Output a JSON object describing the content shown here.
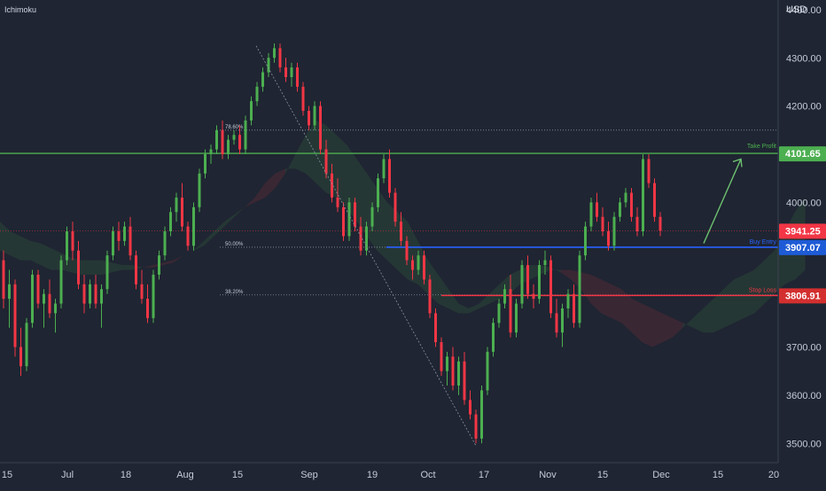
{
  "header": {
    "indicator": "Ichimoku",
    "currency": "USD"
  },
  "chart_data": {
    "type": "candlestick",
    "y_axis": {
      "ticks": [
        4400,
        4300,
        4200,
        4100,
        4000,
        3900,
        3800,
        3700,
        3600,
        3500
      ],
      "tick_labels": [
        "4400.00",
        "4300.00",
        "4200.00",
        "4100.00",
        "4000.00",
        "3900.00",
        "3800.00",
        "3700.00",
        "3600.00",
        "3500.00"
      ],
      "ylim": [
        3460,
        4420
      ]
    },
    "x_axis": {
      "tick_labels": [
        "15",
        "Jul",
        "18",
        "Aug",
        "15",
        "Sep",
        "19",
        "Oct",
        "17",
        "Nov",
        "15",
        "Dec",
        "15",
        "20"
      ]
    },
    "levels": [
      {
        "label": "Take Profit",
        "value": 4101.65,
        "text": "4101.65",
        "color": "#4caf50"
      },
      {
        "label": "Stop Loss",
        "value": 3806.91,
        "text": "3806.91",
        "color": "#f23645"
      },
      {
        "label": "Buy Entry",
        "value": 3907.07,
        "text": "3907.07",
        "color": "#2962ff"
      }
    ],
    "last_price": {
      "value": 3941.25,
      "text": "3941.25",
      "color": "#f23645"
    },
    "fibonacci": [
      {
        "label": "78.60%",
        "value": 4150
      },
      {
        "label": "50.00%",
        "value": 3907
      },
      {
        "label": "38.20%",
        "value": 3808
      }
    ],
    "trend_swing": {
      "high": 4325,
      "low": 3495
    },
    "ohlc": [
      [
        3880,
        3900,
        3780,
        3800
      ],
      [
        3800,
        3860,
        3740,
        3830
      ],
      [
        3830,
        3840,
        3680,
        3700
      ],
      [
        3700,
        3740,
        3640,
        3660
      ],
      [
        3660,
        3760,
        3650,
        3750
      ],
      [
        3750,
        3860,
        3740,
        3850
      ],
      [
        3850,
        3860,
        3780,
        3790
      ],
      [
        3790,
        3820,
        3740,
        3810
      ],
      [
        3810,
        3840,
        3760,
        3770
      ],
      [
        3770,
        3800,
        3730,
        3790
      ],
      [
        3790,
        3890,
        3780,
        3880
      ],
      [
        3880,
        3950,
        3870,
        3940
      ],
      [
        3940,
        3960,
        3880,
        3900
      ],
      [
        3900,
        3920,
        3820,
        3830
      ],
      [
        3830,
        3850,
        3770,
        3790
      ],
      [
        3790,
        3840,
        3780,
        3830
      ],
      [
        3830,
        3850,
        3780,
        3790
      ],
      [
        3790,
        3830,
        3740,
        3820
      ],
      [
        3820,
        3900,
        3810,
        3890
      ],
      [
        3890,
        3950,
        3880,
        3940
      ],
      [
        3940,
        3960,
        3900,
        3920
      ],
      [
        3920,
        3960,
        3910,
        3950
      ],
      [
        3950,
        3970,
        3880,
        3890
      ],
      [
        3890,
        3900,
        3820,
        3830
      ],
      [
        3830,
        3860,
        3790,
        3800
      ],
      [
        3800,
        3830,
        3750,
        3760
      ],
      [
        3760,
        3860,
        3750,
        3850
      ],
      [
        3850,
        3900,
        3840,
        3890
      ],
      [
        3890,
        3950,
        3880,
        3940
      ],
      [
        3940,
        3990,
        3930,
        3980
      ],
      [
        3980,
        4020,
        3960,
        4010
      ],
      [
        4010,
        4040,
        3940,
        3950
      ],
      [
        3950,
        3960,
        3900,
        3910
      ],
      [
        3910,
        4000,
        3900,
        3990
      ],
      [
        3990,
        4070,
        3980,
        4060
      ],
      [
        4060,
        4110,
        4050,
        4100
      ],
      [
        4100,
        4120,
        4080,
        4110
      ],
      [
        4110,
        4160,
        4100,
        4150
      ],
      [
        4150,
        4170,
        4090,
        4100
      ],
      [
        4100,
        4140,
        4090,
        4130
      ],
      [
        4130,
        4150,
        4120,
        4140
      ],
      [
        4140,
        4160,
        4100,
        4110
      ],
      [
        4110,
        4180,
        4100,
        4170
      ],
      [
        4170,
        4220,
        4160,
        4210
      ],
      [
        4210,
        4250,
        4200,
        4240
      ],
      [
        4240,
        4280,
        4230,
        4270
      ],
      [
        4270,
        4310,
        4260,
        4300
      ],
      [
        4300,
        4330,
        4290,
        4320
      ],
      [
        4320,
        4330,
        4270,
        4280
      ],
      [
        4280,
        4300,
        4250,
        4260
      ],
      [
        4260,
        4290,
        4240,
        4280
      ],
      [
        4280,
        4290,
        4230,
        4240
      ],
      [
        4240,
        4250,
        4180,
        4190
      ],
      [
        4190,
        4200,
        4150,
        4160
      ],
      [
        4160,
        4210,
        4150,
        4200
      ],
      [
        4200,
        4210,
        4100,
        4110
      ],
      [
        4110,
        4130,
        4050,
        4060
      ],
      [
        4060,
        4080,
        4000,
        4010
      ],
      [
        4010,
        4050,
        3980,
        3990
      ],
      [
        3990,
        4000,
        3920,
        3930
      ],
      [
        3930,
        4010,
        3920,
        4000
      ],
      [
        4000,
        4010,
        3940,
        3950
      ],
      [
        3950,
        3970,
        3890,
        3900
      ],
      [
        3900,
        3960,
        3890,
        3950
      ],
      [
        3950,
        4000,
        3940,
        3990
      ],
      [
        3990,
        4060,
        3980,
        4050
      ],
      [
        4050,
        4100,
        4040,
        4090
      ],
      [
        4090,
        4110,
        4010,
        4020
      ],
      [
        4020,
        4030,
        3950,
        3960
      ],
      [
        3960,
        3980,
        3910,
        3920
      ],
      [
        3920,
        3930,
        3870,
        3880
      ],
      [
        3880,
        3890,
        3840,
        3860
      ],
      [
        3860,
        3900,
        3850,
        3890
      ],
      [
        3890,
        3900,
        3830,
        3840
      ],
      [
        3840,
        3850,
        3760,
        3770
      ],
      [
        3770,
        3780,
        3700,
        3710
      ],
      [
        3710,
        3720,
        3640,
        3650
      ],
      [
        3650,
        3690,
        3620,
        3680
      ],
      [
        3680,
        3700,
        3610,
        3620
      ],
      [
        3620,
        3680,
        3600,
        3670
      ],
      [
        3670,
        3690,
        3580,
        3590
      ],
      [
        3590,
        3610,
        3550,
        3560
      ],
      [
        3560,
        3570,
        3500,
        3510
      ],
      [
        3510,
        3620,
        3500,
        3610
      ],
      [
        3610,
        3700,
        3600,
        3690
      ],
      [
        3690,
        3760,
        3680,
        3750
      ],
      [
        3750,
        3800,
        3740,
        3790
      ],
      [
        3790,
        3830,
        3780,
        3820
      ],
      [
        3820,
        3850,
        3720,
        3730
      ],
      [
        3730,
        3800,
        3720,
        3790
      ],
      [
        3790,
        3880,
        3780,
        3870
      ],
      [
        3870,
        3890,
        3800,
        3810
      ],
      [
        3810,
        3830,
        3780,
        3800
      ],
      [
        3800,
        3880,
        3790,
        3870
      ],
      [
        3870,
        3900,
        3850,
        3880
      ],
      [
        3880,
        3890,
        3760,
        3770
      ],
      [
        3770,
        3800,
        3720,
        3730
      ],
      [
        3730,
        3790,
        3700,
        3780
      ],
      [
        3780,
        3820,
        3760,
        3810
      ],
      [
        3810,
        3830,
        3740,
        3750
      ],
      [
        3750,
        3900,
        3740,
        3890
      ],
      [
        3890,
        3960,
        3880,
        3950
      ],
      [
        3950,
        4010,
        3940,
        4000
      ],
      [
        4000,
        4020,
        3960,
        3970
      ],
      [
        3970,
        3990,
        3930,
        3940
      ],
      [
        3940,
        3960,
        3900,
        3910
      ],
      [
        3910,
        3980,
        3900,
        3970
      ],
      [
        3970,
        4010,
        3960,
        4000
      ],
      [
        4000,
        4030,
        3990,
        4020
      ],
      [
        4020,
        4030,
        3960,
        3970
      ],
      [
        3970,
        3990,
        3930,
        3940
      ],
      [
        3940,
        4100,
        3930,
        4090
      ],
      [
        4090,
        4100,
        4030,
        4040
      ],
      [
        4040,
        4050,
        3960,
        3970
      ],
      [
        3970,
        3980,
        3930,
        3941.25
      ]
    ],
    "cloud": {
      "a": [
        3960,
        3940,
        3930,
        3920,
        3915,
        3905,
        3895,
        3885,
        3880,
        3880,
        3880,
        3875,
        3870,
        3870,
        3865,
        3865,
        3870,
        3875,
        3890,
        3900,
        3920,
        3940,
        3960,
        3975,
        3990,
        4000,
        4010,
        4030,
        4060,
        4100,
        4140,
        4170,
        4160,
        4140,
        4120,
        4090,
        4060,
        4030,
        4000,
        3980,
        3960,
        3920,
        3880,
        3850,
        3820,
        3790,
        3780,
        3790,
        3810,
        3830,
        3850,
        3860,
        3870,
        3870,
        3865,
        3855,
        3840,
        3820,
        3790,
        3770,
        3760,
        3750,
        3730,
        3710,
        3700,
        3710,
        3720,
        3740,
        3760,
        3780,
        3800,
        3820,
        3840,
        3850,
        3860,
        3880,
        3900,
        3940,
        3980,
        4010
      ],
      "b": [
        3900,
        3890,
        3880,
        3880,
        3870,
        3860,
        3860,
        3855,
        3850,
        3850,
        3850,
        3855,
        3860,
        3860,
        3865,
        3870,
        3875,
        3880,
        3890,
        3900,
        3910,
        3930,
        3950,
        3970,
        3990,
        4010,
        4040,
        4060,
        4070,
        4070,
        4060,
        4040,
        4020,
        4010,
        3990,
        3960,
        3930,
        3900,
        3880,
        3860,
        3840,
        3830,
        3810,
        3790,
        3780,
        3770,
        3770,
        3780,
        3790,
        3800,
        3810,
        3830,
        3840,
        3850,
        3860,
        3860,
        3860,
        3855,
        3850,
        3840,
        3830,
        3820,
        3800,
        3790,
        3780,
        3770,
        3760,
        3750,
        3740,
        3730,
        3730,
        3740,
        3750,
        3760,
        3770,
        3790,
        3810,
        3830,
        3840,
        3860
      ]
    }
  }
}
